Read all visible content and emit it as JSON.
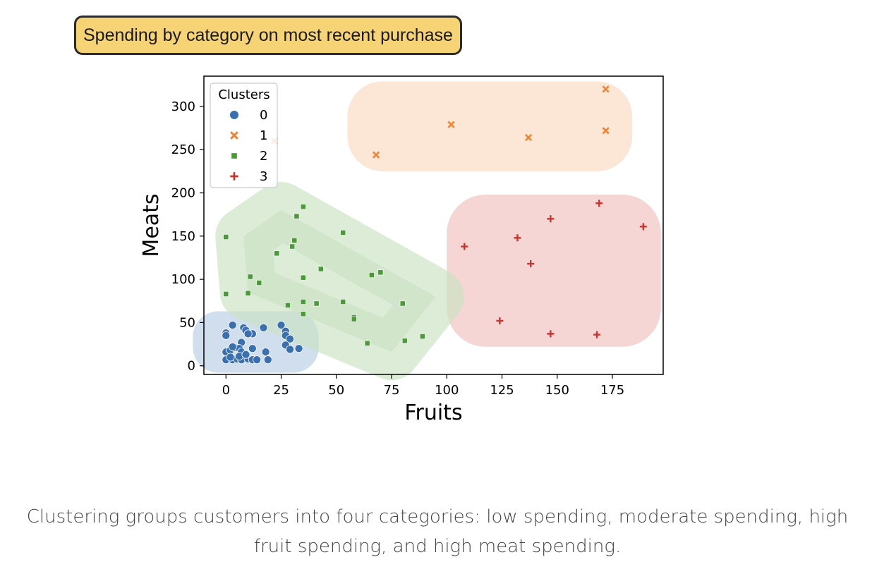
{
  "header": {
    "title": "Spending by category on most recent purchase"
  },
  "caption": {
    "text": "Clustering groups customers into four categories: low spending, moderate spending, high fruit spending, and high meat spending."
  },
  "chart_data": {
    "type": "scatter",
    "title": "Spending by category on most recent purchase",
    "xlabel": "Fruits",
    "ylabel": "Meats",
    "xlim": [
      -10,
      198
    ],
    "ylim": [
      -10,
      335
    ],
    "xticks": [
      0,
      25,
      50,
      75,
      100,
      125,
      150,
      175
    ],
    "yticks": [
      0,
      50,
      100,
      150,
      200,
      250,
      300
    ],
    "grid": false,
    "legend": {
      "title": "Clusters",
      "placement": "top-left"
    },
    "series": [
      {
        "name": "0",
        "marker": "circle",
        "color": "#3a70b0",
        "points": [
          [
            0,
            38
          ],
          [
            0,
            35
          ],
          [
            3,
            47
          ],
          [
            8,
            44
          ],
          [
            9,
            41
          ],
          [
            12,
            37
          ],
          [
            10,
            37
          ],
          [
            17,
            44
          ],
          [
            25,
            47
          ],
          [
            27,
            40
          ],
          [
            27,
            35
          ],
          [
            29,
            31
          ],
          [
            27,
            24
          ],
          [
            29,
            19
          ],
          [
            33,
            20
          ],
          [
            18,
            16
          ],
          [
            0,
            16
          ],
          [
            2,
            18
          ],
          [
            4,
            21
          ],
          [
            7,
            27
          ],
          [
            6,
            20
          ],
          [
            7,
            16
          ],
          [
            12,
            20
          ],
          [
            0,
            7
          ],
          [
            3,
            7
          ],
          [
            5,
            8
          ],
          [
            7,
            7
          ],
          [
            10,
            8
          ],
          [
            12,
            7
          ],
          [
            14,
            7
          ],
          [
            19,
            7
          ],
          [
            2,
            10
          ],
          [
            6,
            11
          ],
          [
            9,
            13
          ],
          [
            3,
            22
          ]
        ]
      },
      {
        "name": "1",
        "marker": "x",
        "color": "#ef8534",
        "points": [
          [
            172,
            320
          ],
          [
            102,
            279
          ],
          [
            137,
            264
          ],
          [
            172,
            272
          ],
          [
            68,
            244
          ],
          [
            22,
            260
          ]
        ]
      },
      {
        "name": "2",
        "marker": "square",
        "color": "#4a9a3a",
        "points": [
          [
            35,
            184
          ],
          [
            32,
            173
          ],
          [
            53,
            154
          ],
          [
            0,
            149
          ],
          [
            31,
            145
          ],
          [
            30,
            138
          ],
          [
            23,
            130
          ],
          [
            43,
            112
          ],
          [
            70,
            108
          ],
          [
            66,
            105
          ],
          [
            11,
            103
          ],
          [
            35,
            102
          ],
          [
            15,
            96
          ],
          [
            0,
            83
          ],
          [
            10,
            84
          ],
          [
            53,
            74
          ],
          [
            35,
            74
          ],
          [
            80,
            72
          ],
          [
            41,
            72
          ],
          [
            28,
            70
          ],
          [
            35,
            60
          ],
          [
            58,
            56
          ],
          [
            58,
            54
          ],
          [
            89,
            34
          ],
          [
            81,
            29
          ],
          [
            64,
            26
          ]
        ]
      },
      {
        "name": "3",
        "marker": "plus",
        "color": "#c8352c",
        "points": [
          [
            169,
            188
          ],
          [
            189,
            161
          ],
          [
            147,
            170
          ],
          [
            132,
            148
          ],
          [
            108,
            138
          ],
          [
            138,
            118
          ],
          [
            124,
            52
          ],
          [
            147,
            37
          ],
          [
            168,
            36
          ]
        ]
      }
    ],
    "highlights": [
      {
        "cluster": "0",
        "color": "#b8cce4"
      },
      {
        "cluster": "1",
        "color": "#fbd9bf"
      },
      {
        "cluster": "2",
        "color": "#c9e2c2"
      },
      {
        "cluster": "3",
        "color": "#efc0bd"
      }
    ]
  }
}
